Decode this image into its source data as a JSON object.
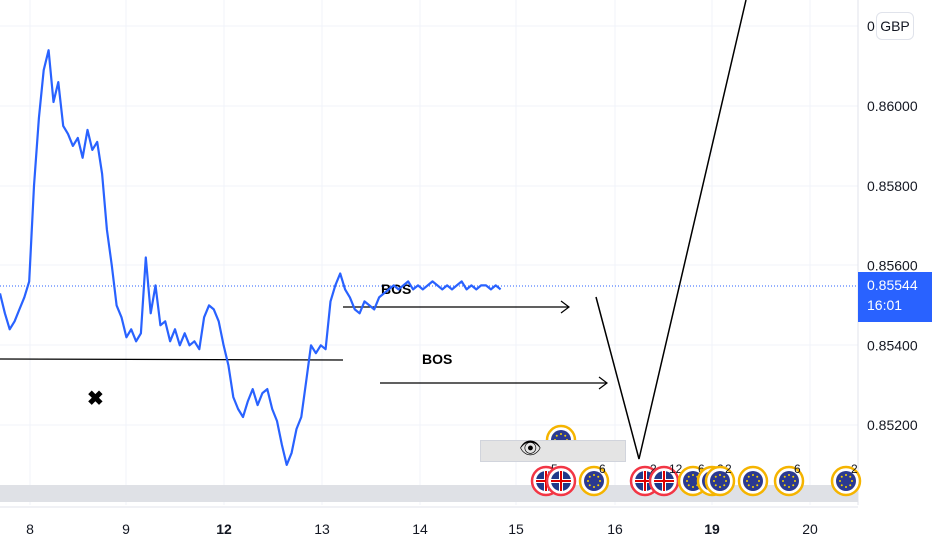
{
  "chart_data": {
    "type": "line",
    "currency": "GBP",
    "last_price": "0.85544",
    "countdown": "16:01",
    "y_ticks": [
      "0.86000",
      "0.85800",
      "0.85600",
      "0.85400",
      "0.85200"
    ],
    "top_tick": "0",
    "ylim": [
      0.8503,
      0.863
    ],
    "x_ticks": [
      {
        "label": "8",
        "bold": false
      },
      {
        "label": "9",
        "bold": false
      },
      {
        "label": "12",
        "bold": true
      },
      {
        "label": "13",
        "bold": false
      },
      {
        "label": "14",
        "bold": false
      },
      {
        "label": "15",
        "bold": false
      },
      {
        "label": "16",
        "bold": false
      },
      {
        "label": "19",
        "bold": true
      },
      {
        "label": "20",
        "bold": false
      }
    ],
    "annotations": {
      "bos1": "BOS",
      "bos2": "BOS",
      "cross": "✖",
      "eye": "👁"
    },
    "events": [
      "5",
      "6",
      "2",
      "12",
      "6",
      "2",
      "2",
      "6",
      "2"
    ],
    "series": [
      {
        "color": "#2962ff",
        "x": [
          0,
          0.05,
          0.1,
          0.15,
          0.2,
          0.25,
          0.3,
          0.35,
          0.4,
          0.45,
          0.5,
          0.55,
          0.6,
          0.65,
          0.7,
          0.75,
          0.8,
          0.85,
          0.9,
          0.95,
          1.0,
          1.05,
          1.1,
          1.15,
          1.2,
          1.25,
          1.3,
          1.35,
          1.4,
          1.45,
          1.5,
          1.55,
          1.6,
          1.65,
          1.7,
          1.75,
          1.8,
          1.85,
          1.9,
          1.95,
          2.0,
          2.05,
          2.1,
          2.15,
          2.2,
          2.25,
          2.3,
          2.35,
          2.4,
          2.45,
          2.5,
          2.55,
          2.6,
          2.65,
          2.7,
          2.75,
          2.8,
          2.85,
          2.9,
          2.95,
          3.0,
          3.05,
          3.1,
          3.15,
          3.2,
          3.25,
          3.3,
          3.35,
          3.4,
          3.45,
          3.5,
          3.55,
          3.6,
          3.65,
          3.7,
          3.75,
          3.8,
          3.85,
          3.9,
          3.95,
          4.0,
          4.05,
          4.1,
          4.15,
          4.2,
          4.25,
          4.3,
          4.35,
          4.4,
          4.45,
          4.5,
          4.55,
          4.6,
          4.65,
          4.7,
          4.75,
          4.8,
          4.85,
          4.9,
          4.95,
          5.0,
          5.05,
          5.1,
          5.15
        ],
        "values": [
          0.8553,
          0.8548,
          0.8544,
          0.8546,
          0.8549,
          0.8552,
          0.8556,
          0.858,
          0.8597,
          0.8609,
          0.8614,
          0.8601,
          0.8606,
          0.8595,
          0.8593,
          0.859,
          0.8592,
          0.8587,
          0.8594,
          0.8589,
          0.8591,
          0.8583,
          0.8569,
          0.856,
          0.855,
          0.8547,
          0.8542,
          0.8544,
          0.8541,
          0.8543,
          0.8562,
          0.8548,
          0.8555,
          0.8545,
          0.8546,
          0.8541,
          0.8544,
          0.854,
          0.8543,
          0.854,
          0.8541,
          0.8539,
          0.8547,
          0.855,
          0.8549,
          0.8546,
          0.854,
          0.8535,
          0.8527,
          0.8524,
          0.8522,
          0.8526,
          0.8529,
          0.8525,
          0.8528,
          0.8529,
          0.8524,
          0.8521,
          0.8515,
          0.851,
          0.8513,
          0.8519,
          0.8522,
          0.8531,
          0.854,
          0.8538,
          0.854,
          0.8539,
          0.8551,
          0.8555,
          0.8558,
          0.8554,
          0.8552,
          0.8549,
          0.8548,
          0.8551,
          0.855,
          0.8549,
          0.8552,
          0.8553,
          0.8554,
          0.8555,
          0.8554,
          0.8555,
          0.8556,
          0.8554,
          0.8555,
          0.8554,
          0.8555,
          0.8556,
          0.8555,
          0.8554,
          0.8555,
          0.8554,
          0.8555,
          0.8556,
          0.8554,
          0.8555,
          0.8554,
          0.8555,
          0.8555,
          0.8554,
          0.8555,
          0.8554
        ]
      }
    ]
  }
}
